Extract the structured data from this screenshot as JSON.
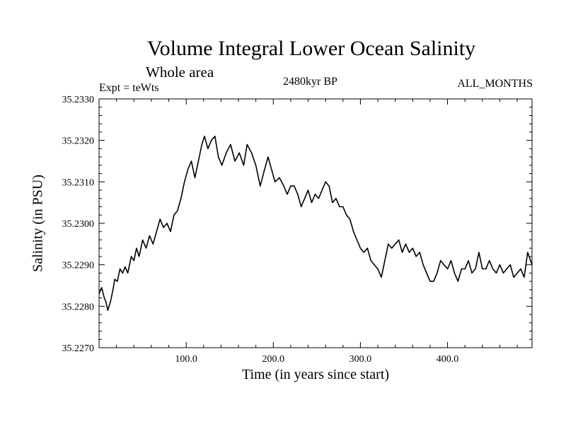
{
  "chart_data": {
    "type": "line",
    "title": "Volume Integral Lower Ocean Salinity",
    "subtitle_left": "Whole area",
    "experiment_label": "Expt = teWts",
    "center_label": "2480kyr BP",
    "right_label": "ALL_MONTHS",
    "xlabel": "Time (in years since start)",
    "ylabel": "Salinity (in PSU)",
    "xlim": [
      0,
      497
    ],
    "ylim": [
      35.227,
      35.233
    ],
    "x_ticks": [
      100,
      200,
      300,
      400
    ],
    "x_tick_labels": [
      "100.0",
      "200.0",
      "300.0",
      "400.0"
    ],
    "y_ticks": [
      35.227,
      35.228,
      35.229,
      35.23,
      35.231,
      35.232,
      35.233
    ],
    "y_tick_labels": [
      "35.2270",
      "35.2280",
      "35.2290",
      "35.2300",
      "35.2310",
      "35.2320",
      "35.2330"
    ],
    "series": [
      {
        "name": "Salinity",
        "color": "#000000",
        "points": [
          [
            0,
            35.2283
          ],
          [
            3,
            35.22845
          ],
          [
            6,
            35.2282
          ],
          [
            8,
            35.2281
          ],
          [
            10,
            35.2279
          ],
          [
            13,
            35.2281
          ],
          [
            16,
            35.2284
          ],
          [
            18,
            35.22865
          ],
          [
            21,
            35.2286
          ],
          [
            24,
            35.2289
          ],
          [
            27,
            35.2288
          ],
          [
            30,
            35.22895
          ],
          [
            33,
            35.2288
          ],
          [
            37,
            35.2292
          ],
          [
            40,
            35.2291
          ],
          [
            43,
            35.2294
          ],
          [
            46,
            35.2292
          ],
          [
            50,
            35.2296
          ],
          [
            54,
            35.2294
          ],
          [
            58,
            35.2297
          ],
          [
            62,
            35.2295
          ],
          [
            66,
            35.2298
          ],
          [
            70,
            35.2301
          ],
          [
            74,
            35.2299
          ],
          [
            78,
            35.23
          ],
          [
            82,
            35.2298
          ],
          [
            86,
            35.2302
          ],
          [
            90,
            35.2303
          ],
          [
            94,
            35.2306
          ],
          [
            98,
            35.231
          ],
          [
            102,
            35.2313
          ],
          [
            106,
            35.2315
          ],
          [
            110,
            35.2311
          ],
          [
            114,
            35.2315
          ],
          [
            118,
            35.2319
          ],
          [
            121,
            35.2321
          ],
          [
            125,
            35.2318
          ],
          [
            129,
            35.232
          ],
          [
            133,
            35.2321
          ],
          [
            137,
            35.2316
          ],
          [
            141,
            35.2314
          ],
          [
            146,
            35.2317
          ],
          [
            151,
            35.2319
          ],
          [
            156,
            35.2315
          ],
          [
            161,
            35.2317
          ],
          [
            166,
            35.2314
          ],
          [
            170,
            35.2319
          ],
          [
            175,
            35.2317
          ],
          [
            180,
            35.2314
          ],
          [
            185,
            35.2309
          ],
          [
            190,
            35.2313
          ],
          [
            194,
            35.2316
          ],
          [
            198,
            35.2313
          ],
          [
            202,
            35.231
          ],
          [
            207,
            35.2311
          ],
          [
            212,
            35.2309
          ],
          [
            216,
            35.2307
          ],
          [
            220,
            35.2309
          ],
          [
            224,
            35.2309
          ],
          [
            228,
            35.2307
          ],
          [
            232,
            35.2304
          ],
          [
            236,
            35.2306
          ],
          [
            240,
            35.2308
          ],
          [
            244,
            35.2305
          ],
          [
            248,
            35.2307
          ],
          [
            252,
            35.2306
          ],
          [
            256,
            35.2308
          ],
          [
            260,
            35.231
          ],
          [
            264,
            35.2309
          ],
          [
            268,
            35.2305
          ],
          [
            272,
            35.2306
          ],
          [
            276,
            35.2304
          ],
          [
            280,
            35.2304
          ],
          [
            284,
            35.2302
          ],
          [
            288,
            35.2301
          ],
          [
            292,
            35.2298
          ],
          [
            296,
            35.2296
          ],
          [
            300,
            35.2294
          ],
          [
            304,
            35.2293
          ],
          [
            308,
            35.2294
          ],
          [
            312,
            35.2291
          ],
          [
            316,
            35.229
          ],
          [
            320,
            35.2289
          ],
          [
            324,
            35.2287
          ],
          [
            328,
            35.2291
          ],
          [
            332,
            35.2295
          ],
          [
            336,
            35.2294
          ],
          [
            340,
            35.2295
          ],
          [
            344,
            35.2296
          ],
          [
            348,
            35.2293
          ],
          [
            352,
            35.2295
          ],
          [
            356,
            35.2293
          ],
          [
            360,
            35.2294
          ],
          [
            364,
            35.2292
          ],
          [
            368,
            35.2293
          ],
          [
            372,
            35.229
          ],
          [
            376,
            35.2288
          ],
          [
            380,
            35.2286
          ],
          [
            384,
            35.2286
          ],
          [
            388,
            35.2288
          ],
          [
            392,
            35.2291
          ],
          [
            396,
            35.229
          ],
          [
            400,
            35.2289
          ],
          [
            404,
            35.2291
          ],
          [
            408,
            35.2288
          ],
          [
            412,
            35.2286
          ],
          [
            416,
            35.2289
          ],
          [
            420,
            35.2289
          ],
          [
            424,
            35.2291
          ],
          [
            428,
            35.2288
          ],
          [
            432,
            35.2289
          ],
          [
            436,
            35.2293
          ],
          [
            440,
            35.2289
          ],
          [
            444,
            35.2289
          ],
          [
            448,
            35.2291
          ],
          [
            452,
            35.2289
          ],
          [
            456,
            35.2288
          ],
          [
            460,
            35.229
          ],
          [
            464,
            35.2288
          ],
          [
            468,
            35.2289
          ],
          [
            472,
            35.229
          ],
          [
            476,
            35.2287
          ],
          [
            480,
            35.2288
          ],
          [
            484,
            35.2289
          ],
          [
            488,
            35.2287
          ],
          [
            492,
            35.2293
          ],
          [
            497,
            35.229
          ]
        ]
      }
    ]
  }
}
